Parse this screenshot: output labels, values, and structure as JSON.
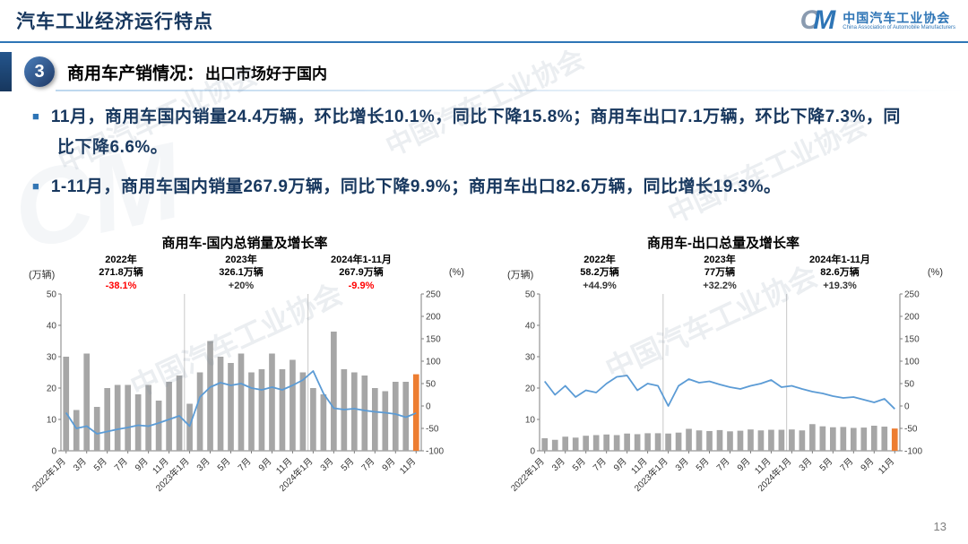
{
  "header": {
    "title": "汽车工业经济运行特点",
    "logo": {
      "mark_c": "C",
      "mark_m": "M",
      "org_cn": "中国汽车工业协会",
      "org_en": "China Association of Automobile Manufacturers"
    }
  },
  "section": {
    "number": "3",
    "title": "商用车产销情况：",
    "subtitle": "出口市场好于国内"
  },
  "bullet_marker": "■",
  "bullets": [
    "11月，商用车国内销量24.4万辆，环比增长10.1%，同比下降15.8%；商用车出口7.1万辆，环比下降7.3%，同比下降6.6%。",
    "1-11月，商用车国内销量267.9万辆，同比下降9.9%；商用车出口82.6万辆，同比增长19.3%。"
  ],
  "watermark": {
    "text": "中国汽车工业协会",
    "mark": "CM"
  },
  "page_number": "13",
  "chart_data": [
    {
      "type": "bar+line",
      "title": "商用车-国内总销量及增长率",
      "left_axis": {
        "label": "(万辆)",
        "min": 0,
        "max": 50,
        "ticks": [
          0,
          10,
          20,
          30,
          40,
          50
        ]
      },
      "right_axis": {
        "label": "(%)",
        "min": -100,
        "max": 250,
        "ticks": [
          -100,
          -50,
          0,
          50,
          100,
          150,
          200,
          250
        ]
      },
      "x_tick_labels": [
        "2022年1月",
        "3月",
        "5月",
        "7月",
        "9月",
        "11月",
        "2023年1月",
        "3月",
        "5月",
        "7月",
        "9月",
        "11月",
        "2024年1月",
        "3月",
        "5月",
        "7月",
        "9月",
        "11月"
      ],
      "x_tick_indices": [
        0,
        2,
        4,
        6,
        8,
        10,
        12,
        14,
        16,
        18,
        20,
        22,
        24,
        26,
        28,
        30,
        32,
        34
      ],
      "bars": [
        30,
        13,
        31,
        14,
        20,
        21,
        21,
        18,
        21,
        16,
        22,
        24,
        15,
        25,
        35,
        30,
        28,
        31,
        25,
        26,
        31,
        26,
        29,
        25,
        20,
        18,
        38,
        26,
        25,
        24,
        20,
        19,
        22,
        22,
        24.4
      ],
      "line": [
        -15,
        -50,
        -45,
        -62,
        -57,
        -52,
        -48,
        -43,
        -45,
        -38,
        -30,
        -22,
        -45,
        20,
        42,
        52,
        46,
        50,
        40,
        36,
        42,
        36,
        46,
        58,
        78,
        28,
        -5,
        -8,
        -6,
        -10,
        -13,
        -15,
        -18,
        -25,
        -15.8
      ],
      "bar_color": "#A6A6A6",
      "last_bar_color": "#ED7D31",
      "line_color": "#5B9BD5",
      "dividers_after_index": [
        11,
        23
      ],
      "annotations": [
        {
          "year": "2022年",
          "total": "271.8万辆",
          "growth": "-38.1%",
          "growth_color": "#FF0000"
        },
        {
          "year": "2023年",
          "total": "326.1万辆",
          "growth": "+20%",
          "growth_color": "#333333"
        },
        {
          "year": "2024年1-11月",
          "total": "267.9万辆",
          "growth": "-9.9%",
          "growth_color": "#FF0000"
        }
      ]
    },
    {
      "type": "bar+line",
      "title": "商用车-出口总量及增长率",
      "left_axis": {
        "label": "(万辆)",
        "min": 0,
        "max": 50,
        "ticks": [
          0,
          10,
          20,
          30,
          40,
          50
        ]
      },
      "right_axis": {
        "label": "(%)",
        "min": -100,
        "max": 250,
        "ticks": [
          -100,
          -50,
          0,
          50,
          100,
          150,
          200,
          250
        ]
      },
      "x_tick_labels": [
        "2022年1月",
        "3月",
        "5月",
        "7月",
        "9月",
        "11月",
        "2023年1月",
        "3月",
        "5月",
        "7月",
        "9月",
        "11月",
        "2024年1月",
        "3月",
        "5月",
        "7月",
        "9月",
        "11月"
      ],
      "x_tick_indices": [
        0,
        2,
        4,
        6,
        8,
        10,
        12,
        14,
        16,
        18,
        20,
        22,
        24,
        26,
        28,
        30,
        32,
        34
      ],
      "bars": [
        4,
        3.5,
        4.5,
        4.2,
        4.8,
        5,
        5.2,
        5,
        5.5,
        5.3,
        5.6,
        5.6,
        5.5,
        5.8,
        7,
        6.5,
        6.3,
        6.6,
        6.2,
        6.4,
        6.8,
        6.5,
        6.7,
        6.7,
        6.8,
        6.5,
        8.5,
        7.8,
        7.5,
        7.6,
        7.3,
        7.4,
        8,
        7.7,
        7.1
      ],
      "line": [
        55,
        25,
        45,
        20,
        35,
        30,
        50,
        65,
        68,
        35,
        50,
        45,
        0,
        45,
        60,
        52,
        55,
        48,
        42,
        38,
        45,
        50,
        58,
        42,
        45,
        38,
        32,
        28,
        22,
        18,
        20,
        14,
        8,
        16,
        -6.6
      ],
      "bar_color": "#A6A6A6",
      "last_bar_color": "#ED7D31",
      "line_color": "#5B9BD5",
      "dividers_after_index": [
        11,
        23
      ],
      "annotations": [
        {
          "year": "2022年",
          "total": "58.2万辆",
          "growth": "+44.9%",
          "growth_color": "#333333"
        },
        {
          "year": "2023年",
          "total": "77万辆",
          "growth": "+32.2%",
          "growth_color": "#333333"
        },
        {
          "year": "2024年1-11月",
          "total": "82.6万辆",
          "growth": "+19.3%",
          "growth_color": "#333333"
        }
      ]
    }
  ]
}
